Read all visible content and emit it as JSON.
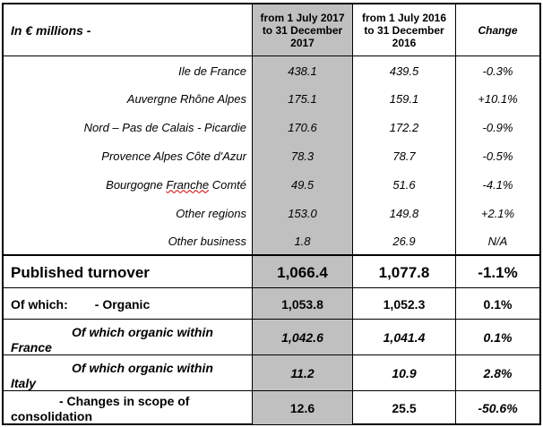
{
  "header": {
    "unit": "In € millions -",
    "col1": [
      "from 1 July 2017",
      "to 31 December",
      "2017"
    ],
    "col2": [
      "from 1 July 2016",
      "to 31 December",
      "2016"
    ],
    "change": "Change"
  },
  "regions": [
    {
      "name": "Ile de France",
      "v2017": "438.1",
      "v2016": "439.5",
      "change": "-0.3%"
    },
    {
      "name": "Auvergne Rhône Alpes",
      "v2017": "175.1",
      "v2016": "159.1",
      "change": "+10.1%"
    },
    {
      "name": "Nord – Pas de Calais - Picardie",
      "v2017": "170.6",
      "v2016": "172.2",
      "change": "-0.9%"
    },
    {
      "name": "Provence Alpes Côte d'Azur",
      "v2017": "78.3",
      "v2016": "78.7",
      "change": "-0.5%"
    },
    {
      "name_pre": "Bourgogne ",
      "name_wavy": "Franche",
      "name_post": " Comté",
      "v2017": "49.5",
      "v2016": "51.6",
      "change": "-4.1%"
    },
    {
      "name": "Other regions",
      "v2017": "153.0",
      "v2016": "149.8",
      "change": "+2.1%"
    },
    {
      "name": "Other business",
      "v2017": "1.8",
      "v2016": "26.9",
      "change": "N/A"
    }
  ],
  "published": {
    "label": "Published turnover",
    "v2017": "1,066.4",
    "v2016": "1,077.8",
    "change": "-1.1%"
  },
  "organic": {
    "label_a": "Of which:",
    "label_b": "- Organic",
    "v2017": "1,053.8",
    "v2016": "1,052.3",
    "change": "0.1%"
  },
  "france": {
    "line1": "Of which organic within",
    "line2": "France",
    "v2017": "1,042.6",
    "v2016": "1,041.4",
    "change": "0.1%"
  },
  "italy": {
    "line1": "Of which organic within",
    "line2": "Italy",
    "v2017": "11.2",
    "v2016": "10.9",
    "change": "2.8%"
  },
  "scope": {
    "line1": "- Changes in scope of",
    "line2": "consolidation",
    "v2017": "12.6",
    "v2016": "25.5",
    "change": "-50.6%"
  }
}
